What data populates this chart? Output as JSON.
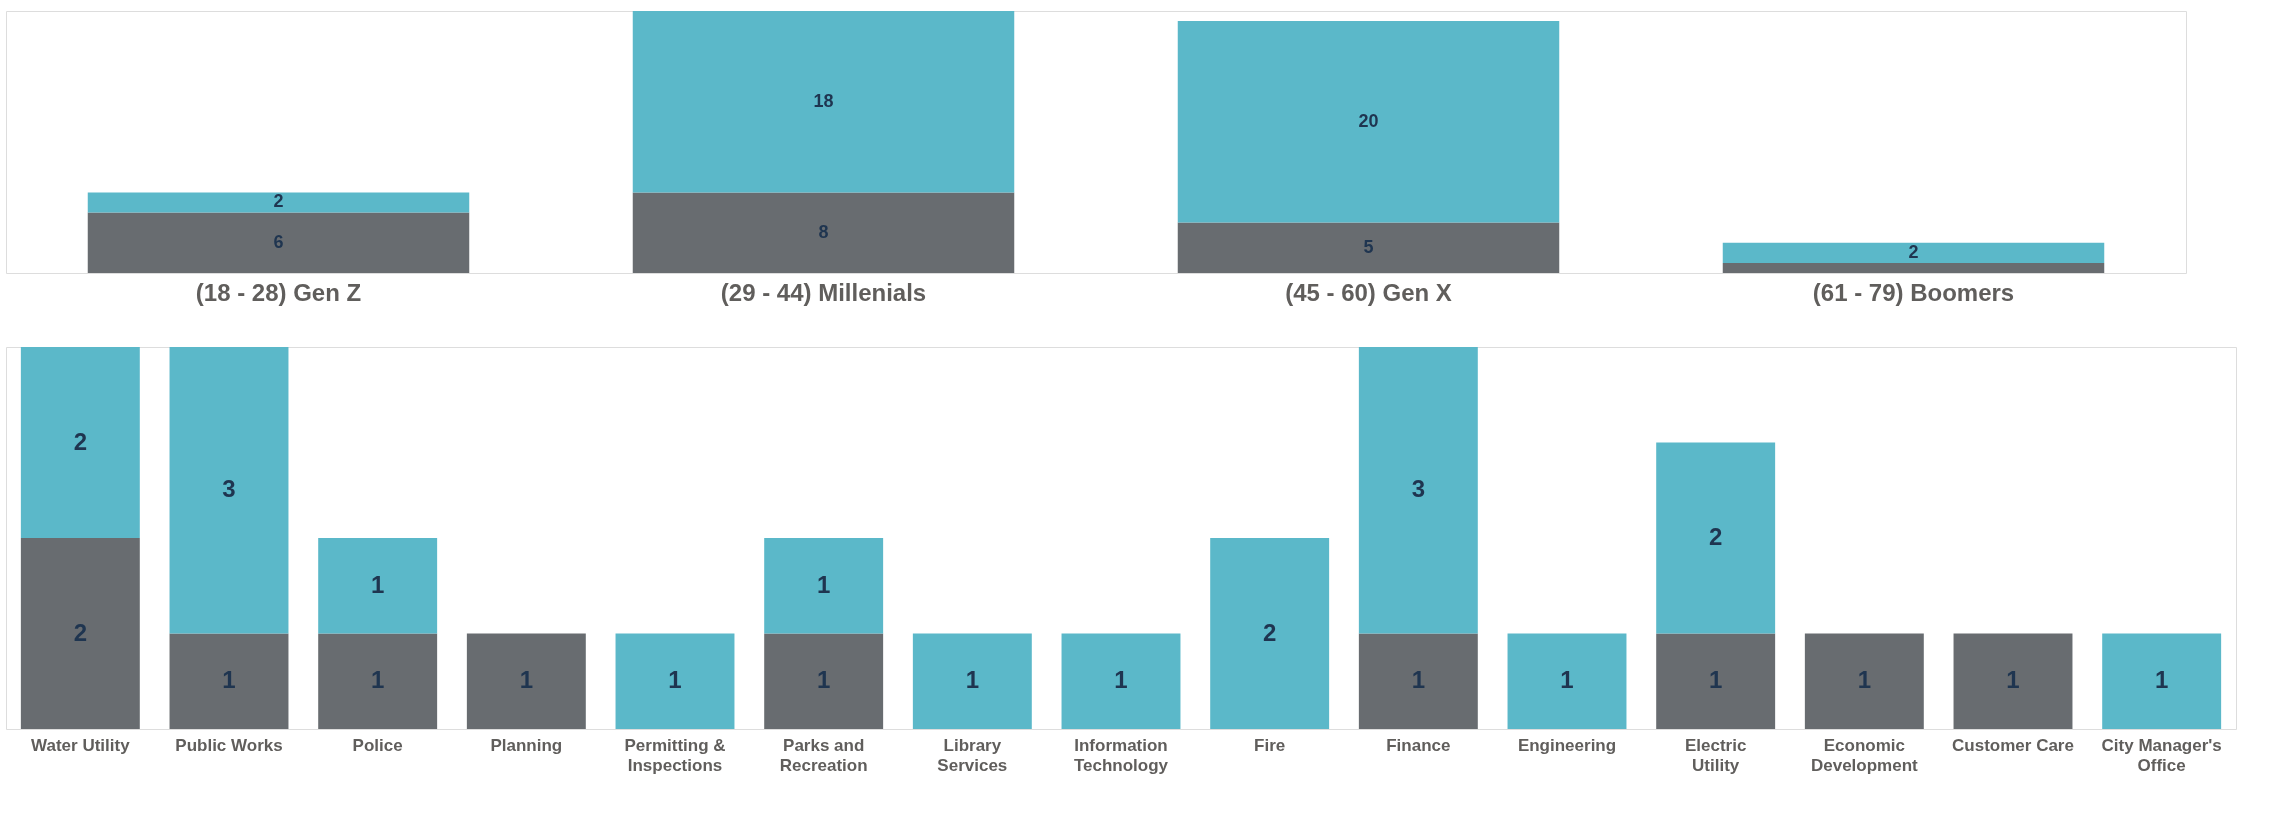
{
  "chart_data": [
    {
      "type": "bar",
      "stacked": true,
      "categories": [
        "(18 - 28) Gen Z",
        "(29 - 44) Millenials",
        "(45 - 60) Gen X",
        "(61 - 79) Boomers"
      ],
      "series": [
        {
          "color": "#686c70",
          "values": [
            6,
            8,
            5,
            1
          ],
          "value_labels": [
            "6",
            "8",
            "5",
            null
          ]
        },
        {
          "color": "#5bb8c9",
          "values": [
            2,
            18,
            20,
            2
          ],
          "value_labels": [
            "2",
            "18",
            "20",
            "2"
          ]
        }
      ]
    },
    {
      "type": "bar",
      "stacked": true,
      "data_labels": true,
      "categories": [
        "Water Utility",
        "Public Works",
        "Police",
        "Planning",
        "Permitting & Inspections",
        "Parks and Recreation",
        "Library Services",
        "Information Technology",
        "Fire",
        "Finance",
        "Engineering",
        "Electric Utility",
        "Economic Development",
        "Customer Care",
        "City Manager's Office"
      ],
      "series": [
        {
          "color": "#686c70",
          "values": [
            2,
            1,
            1,
            1,
            null,
            1,
            null,
            null,
            null,
            1,
            null,
            1,
            1,
            1,
            null
          ]
        },
        {
          "color": "#5bb8c9",
          "values": [
            2,
            3,
            1,
            null,
            1,
            1,
            1,
            1,
            2,
            3,
            1,
            2,
            null,
            null,
            1
          ]
        }
      ]
    }
  ]
}
